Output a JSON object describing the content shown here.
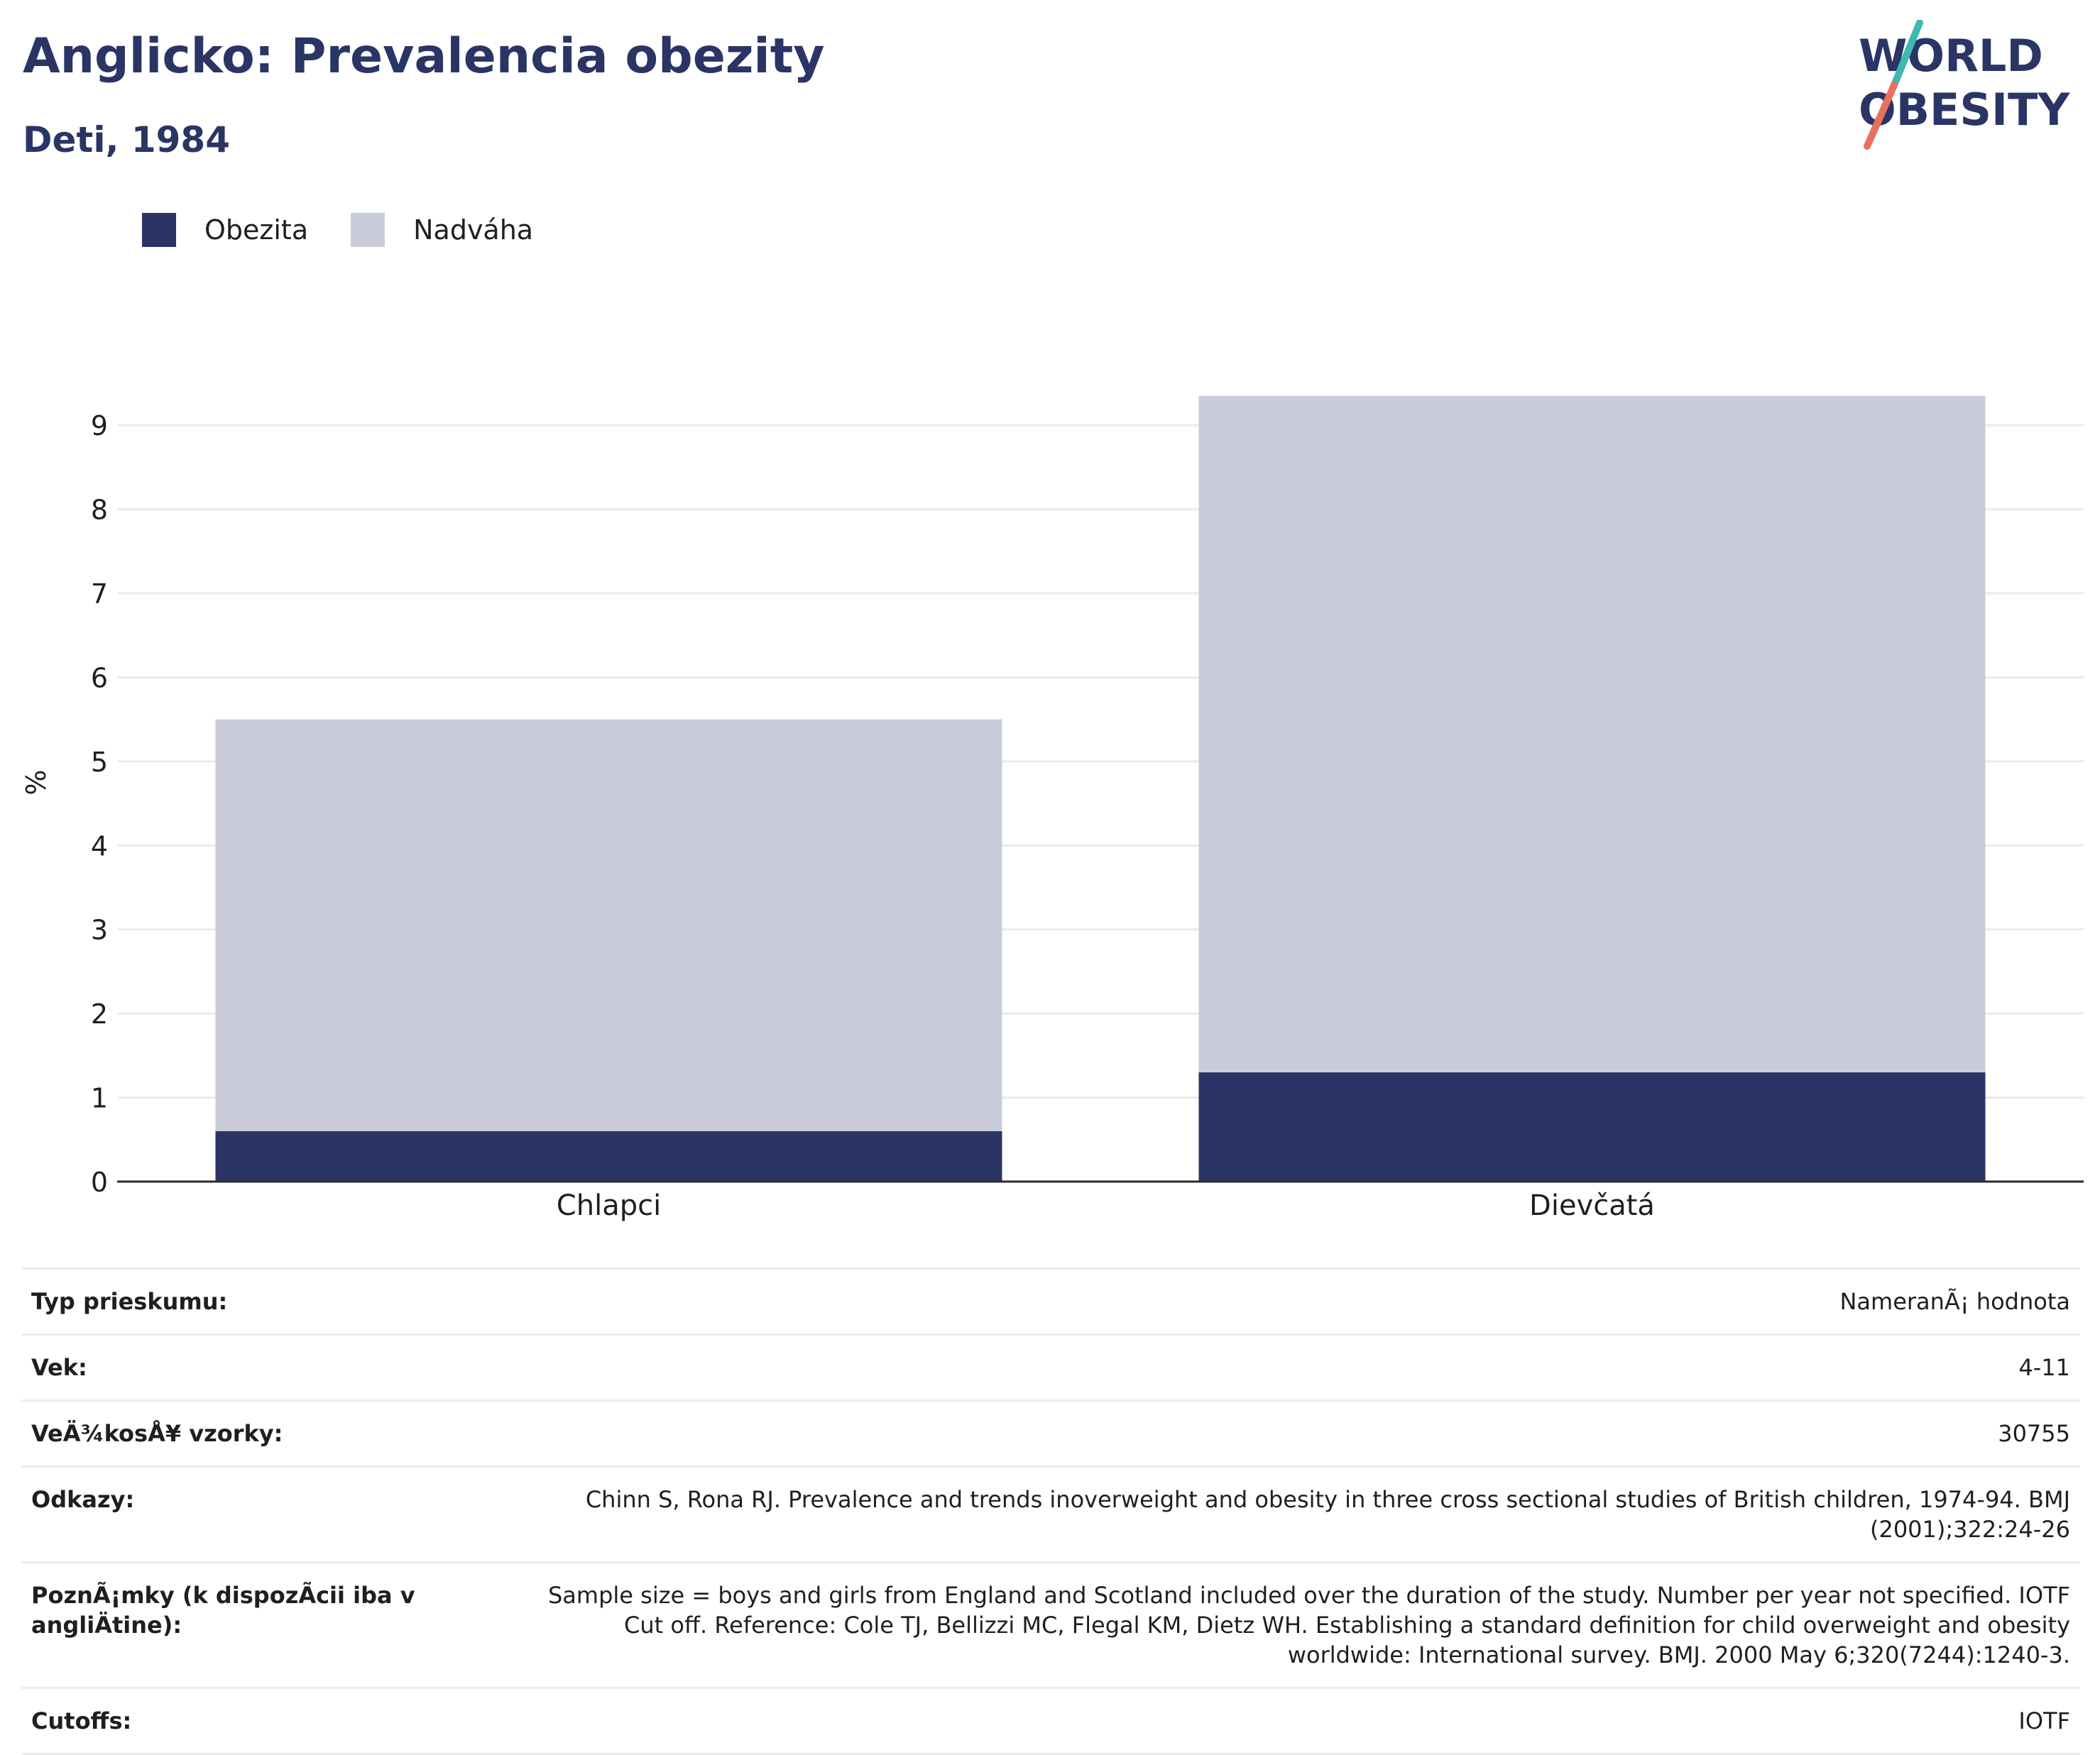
{
  "header": {
    "title": "Anglicko: Prevalencia obezity",
    "subtitle": "Deti, 1984"
  },
  "logo": {
    "line1": "WORLD",
    "line2": "OBESITY",
    "accent_teal": "#3fb8af",
    "accent_coral": "#e8705e"
  },
  "colors": {
    "obesity": "#2a3565",
    "overweight": "#cacdd9",
    "grid": "#ebebeb",
    "axis": "#2b2b2b"
  },
  "chart_data": {
    "type": "bar",
    "stacked": true,
    "categories": [
      "Chlapci",
      "Dievčatá"
    ],
    "series": [
      {
        "name": "Obezita",
        "values": [
          0.6,
          1.3
        ]
      },
      {
        "name": "Nadváha",
        "values": [
          4.9,
          8.05
        ]
      }
    ],
    "ylabel": "%",
    "ylim": [
      0,
      9.5
    ],
    "yticks": [
      0,
      1,
      2,
      3,
      4,
      5,
      6,
      7,
      8,
      9
    ],
    "grid": true,
    "legend_position": "top-left"
  },
  "info": {
    "rows": [
      {
        "key": "Typ prieskumu:",
        "value": "NameranÃ¡ hodnota"
      },
      {
        "key": "Vek:",
        "value": "4-11"
      },
      {
        "key": "VeÄ¾kosÅ¥ vzorky:",
        "value": "30755"
      },
      {
        "key": "Odkazy:",
        "value": "Chinn S, Rona RJ. Prevalence and trends inoverweight and obesity in three cross sectional studies of British children, 1974-94. BMJ (2001);322:24-26"
      },
      {
        "key": "PoznÃ¡mky (k dispozÃcii iba v angliÄtine):",
        "value": "Sample size = boys and girls from England and Scotland included over the duration of the study. Number per year not specified. IOTF Cut off. Reference: Cole TJ, Bellizzi MC, Flegal KM, Dietz WH. Establishing a standard definition for child overweight and obesity worldwide: International survey. BMJ. 2000 May 6;320(7244):1240-3."
      },
      {
        "key": "Cutoffs:",
        "value": "IOTF"
      }
    ]
  }
}
